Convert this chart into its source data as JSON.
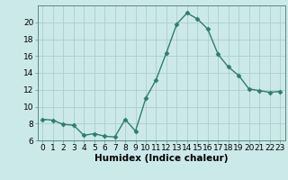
{
  "x": [
    0,
    1,
    2,
    3,
    4,
    5,
    6,
    7,
    8,
    9,
    10,
    11,
    12,
    13,
    14,
    15,
    16,
    17,
    18,
    19,
    20,
    21,
    22,
    23
  ],
  "y": [
    8.5,
    8.4,
    7.9,
    7.8,
    6.6,
    6.8,
    6.5,
    6.4,
    8.5,
    7.1,
    11.0,
    13.2,
    16.4,
    19.8,
    21.1,
    20.4,
    19.2,
    16.2,
    14.7,
    13.7,
    12.1,
    11.9,
    11.7,
    11.8
  ],
  "line_color": "#2e7d6e",
  "marker": "D",
  "marker_size": 2.5,
  "bg_color": "#cce9e9",
  "grid_color": "#b0cccc",
  "xlabel": "Humidex (Indice chaleur)",
  "ylim": [
    6,
    22
  ],
  "xlim": [
    -0.5,
    23.5
  ],
  "yticks": [
    6,
    8,
    10,
    12,
    14,
    16,
    18,
    20
  ],
  "xticks": [
    0,
    1,
    2,
    3,
    4,
    5,
    6,
    7,
    8,
    9,
    10,
    11,
    12,
    13,
    14,
    15,
    16,
    17,
    18,
    19,
    20,
    21,
    22,
    23
  ],
  "tick_fontsize": 6.5,
  "xlabel_fontsize": 7.5,
  "line_width": 1.0
}
